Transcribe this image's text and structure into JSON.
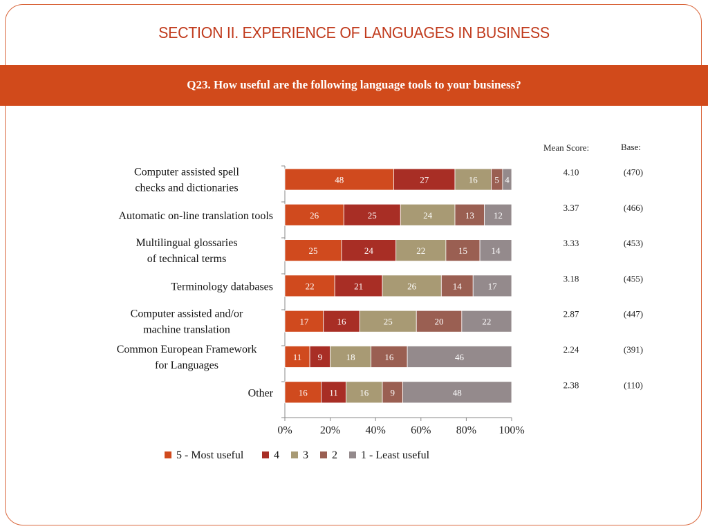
{
  "slide": {
    "title": "SECTION II. EXPERIENCE OF LANGUAGES IN BUSINESS",
    "question": "Q23. How useful are the following language tools to your business?"
  },
  "table": {
    "mean_header": "Mean Score:",
    "base_header": "Base:"
  },
  "colors": {
    "frame": "#d9653a",
    "banner": "#d14a1b",
    "title": "#c0391b"
  },
  "chart_data": {
    "type": "bar",
    "orientation": "horizontal",
    "stacked": "percent",
    "categories": [
      "Computer assisted spell checks and dictionaries",
      "Automatic on-line translation tools",
      "Multilingual glossaries of technical terms",
      "Terminology databases",
      "Computer assisted and/or machine translation",
      "Common European Framework for Languages",
      "Other"
    ],
    "series": [
      {
        "name": "5 - Most useful",
        "color": "#d04a1e",
        "values": [
          48,
          26,
          25,
          22,
          17,
          11,
          16
        ]
      },
      {
        "name": "4",
        "color": "#a82e25",
        "values": [
          27,
          25,
          24,
          21,
          16,
          9,
          11
        ]
      },
      {
        "name": "3",
        "color": "#a89a74",
        "values": [
          16,
          24,
          22,
          26,
          25,
          18,
          16
        ]
      },
      {
        "name": "2",
        "color": "#9a5f52",
        "values": [
          5,
          13,
          15,
          14,
          20,
          16,
          9
        ]
      },
      {
        "name": "1 - Least useful",
        "color": "#948a8c",
        "values": [
          4,
          12,
          14,
          17,
          22,
          46,
          48
        ]
      }
    ],
    "mean_scores": [
      "4.10",
      "3.37",
      "3.33",
      "3.18",
      "2.87",
      "2.24",
      "2.38"
    ],
    "bases": [
      "(470)",
      "(466)",
      "(453)",
      "(455)",
      "(447)",
      "(391)",
      "(110)"
    ],
    "x_ticks": [
      "0%",
      "20%",
      "40%",
      "60%",
      "80%",
      "100%"
    ],
    "xlim": [
      0,
      100
    ],
    "legend_position": "bottom"
  }
}
